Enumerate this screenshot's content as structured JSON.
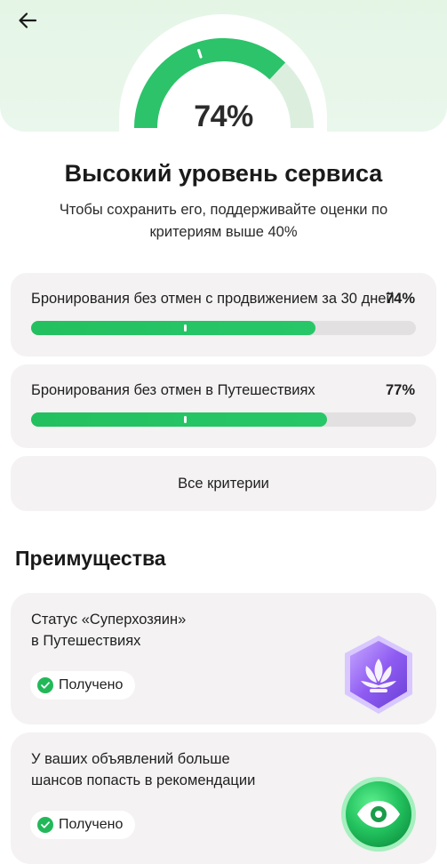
{
  "header": {
    "back_icon": "arrow-left-icon",
    "gauge": {
      "value": 74,
      "display": "74%"
    }
  },
  "summary": {
    "title": "Высокий уровень сервиса",
    "subtitle_line1": "Чтобы сохранить его, поддерживайте оценки по",
    "subtitle_line2": "критериям выше 40%"
  },
  "criteria": [
    {
      "label": "Бронирования без отмен с продвижением за 30 дней",
      "percent": "74%",
      "value": 74,
      "threshold": 40
    },
    {
      "label": "Бронирования без отмен в Путешествиях",
      "percent": "77%",
      "value": 77,
      "threshold": 40
    }
  ],
  "all_criteria_label": "Все критерии",
  "benefits_title": "Преимущества",
  "benefits": [
    {
      "line1": "Статус «Суперхозяин»",
      "line2": "в Путешествиях",
      "badge": "Получено",
      "icon": "lotus-icon"
    },
    {
      "line1": "У ваших объявлений больше",
      "line2": "шансов попасть в рекомендации",
      "badge": "Получено",
      "icon": "eye-icon"
    }
  ],
  "colors": {
    "accent": "#27c265",
    "card": "#f4f2f2",
    "purple": "#8a5cf0"
  }
}
